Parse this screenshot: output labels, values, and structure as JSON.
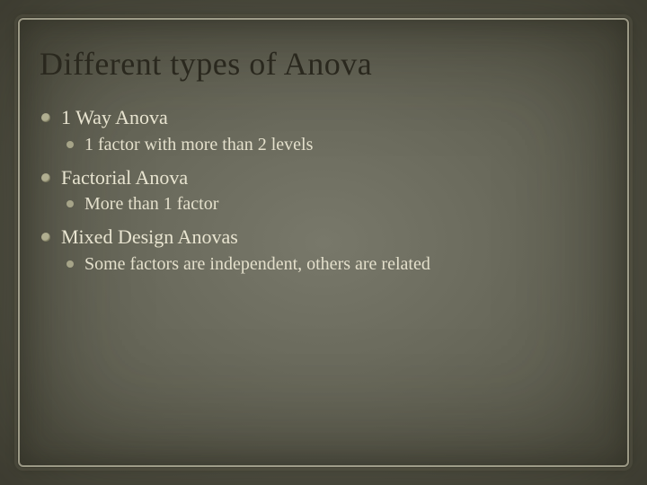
{
  "title": "Different types of Anova",
  "items": [
    {
      "label": "1 Way Anova",
      "sub": [
        {
          "label": "1 factor with more than 2 levels"
        }
      ]
    },
    {
      "label": "Factorial Anova",
      "sub": [
        {
          "label": "More than 1 factor"
        }
      ]
    },
    {
      "label": "Mixed Design Anovas",
      "sub": [
        {
          "label": "Some factors are independent, others are related"
        }
      ]
    }
  ],
  "style": {
    "background_center": "#78786a",
    "background_edge": "#5c5c4e",
    "title_color": "#2a281e",
    "text_color": "#e8e4d0",
    "bullet_color": "#b0ae90",
    "frame_color": "rgba(230,225,200,0.55)",
    "title_fontsize": 36,
    "item_fontsize": 22,
    "sub_fontsize": 20,
    "font_family": "Georgia, 'Times New Roman', serif"
  }
}
